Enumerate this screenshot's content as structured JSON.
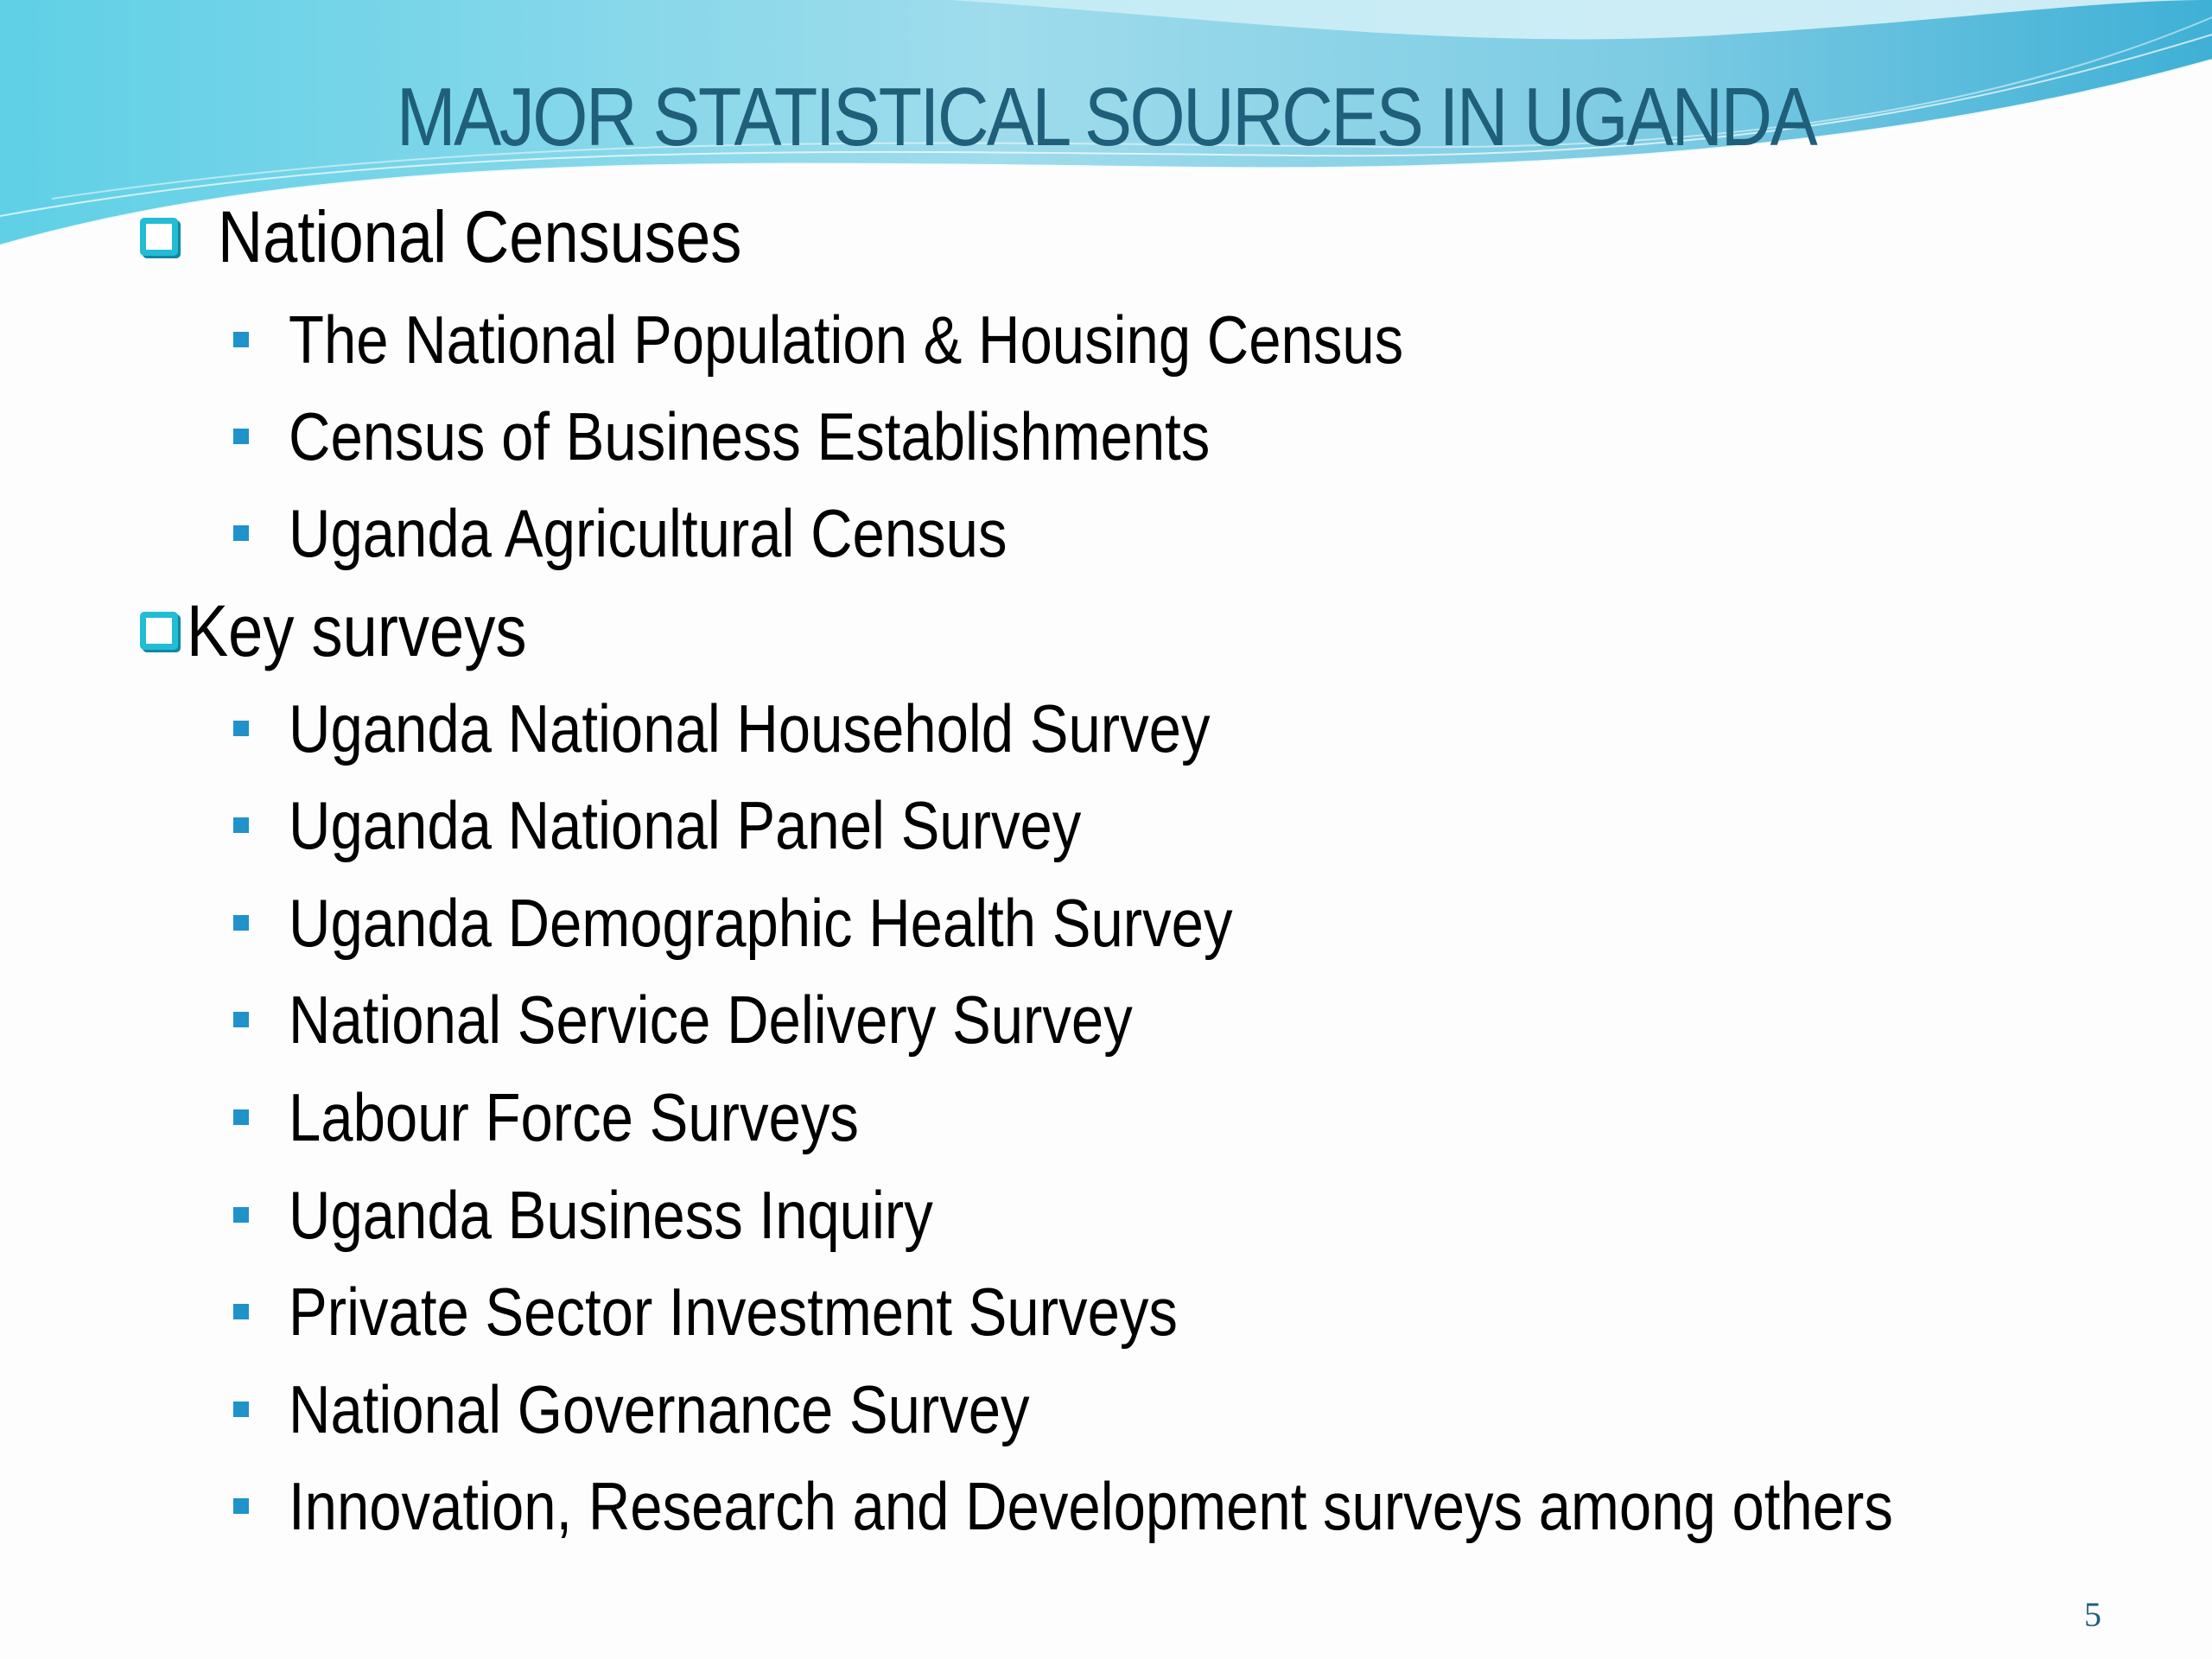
{
  "slide": {
    "title": "MAJOR STATISTICAL SOURCES IN UGANDA",
    "slide_number": "5",
    "accent_color": "#22bcd4",
    "title_color": "#1f5f7a",
    "bullet_color": "#1f93c9",
    "sections": [
      {
        "heading": "National Censuses",
        "items": [
          "The National Population  & Housing Census",
          "Census of Business Establishments",
          "Uganda Agricultural Census"
        ]
      },
      {
        "heading": "Key surveys",
        "items": [
          "Uganda National Household Survey",
          "Uganda National Panel Survey",
          "Uganda Demographic Health Survey",
          "National Service Delivery Survey",
          "Labour Force Surveys",
          "Uganda Business Inquiry",
          "Private Sector Investment Surveys",
          "National Governance Survey",
          "Innovation, Research and Development surveys among others"
        ]
      }
    ]
  }
}
